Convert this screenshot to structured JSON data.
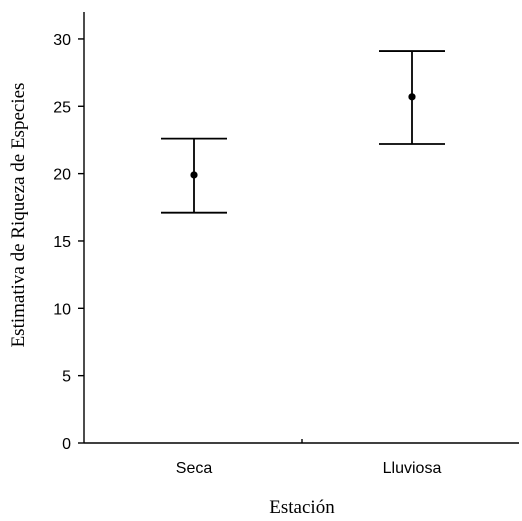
{
  "chart_data": {
    "type": "scatter",
    "title": "",
    "xlabel": "Estación",
    "ylabel": "Estimativa de Riqueza de Especies",
    "categories": [
      "Seca",
      "Lluviosa"
    ],
    "ylim": [
      0,
      32
    ],
    "yticks": [
      0,
      5,
      10,
      15,
      20,
      25,
      30
    ],
    "points": [
      {
        "category": "Seca",
        "mean": 19.9,
        "lower": 17.1,
        "upper": 22.6
      },
      {
        "category": "Lluviosa",
        "mean": 25.7,
        "lower": 22.2,
        "upper": 29.1
      }
    ],
    "grid": false,
    "legend": "none",
    "colors": {
      "marks": "#000000",
      "background": "#ffffff"
    }
  }
}
